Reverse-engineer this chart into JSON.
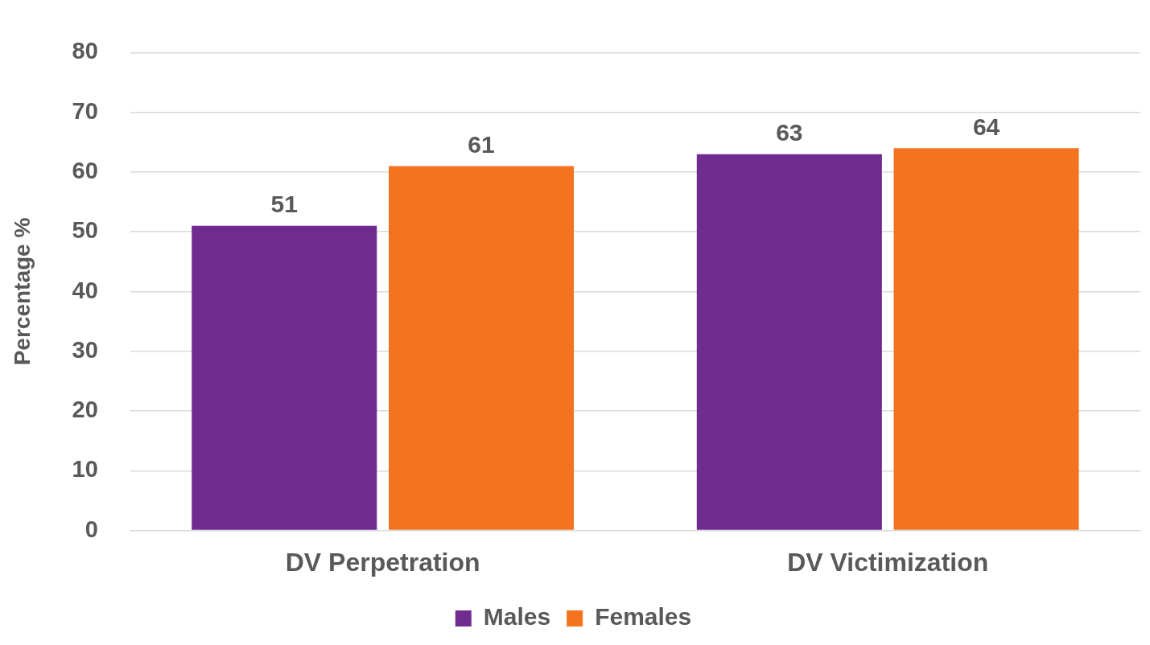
{
  "chart_data": {
    "type": "bar",
    "ylabel": "Percentage %",
    "categories": [
      "DV Perpetration",
      "DV Victimization"
    ],
    "series": [
      {
        "name": "Males",
        "color": "#702b8f",
        "values": [
          51,
          63
        ]
      },
      {
        "name": "Females",
        "color": "#f37321",
        "values": [
          61,
          64
        ]
      }
    ],
    "ylim": [
      0,
      80
    ],
    "yticks": [
      0,
      10,
      20,
      30,
      40,
      50,
      60,
      70,
      80
    ],
    "grid": "y",
    "legend": "bottom",
    "data_labels": true
  }
}
